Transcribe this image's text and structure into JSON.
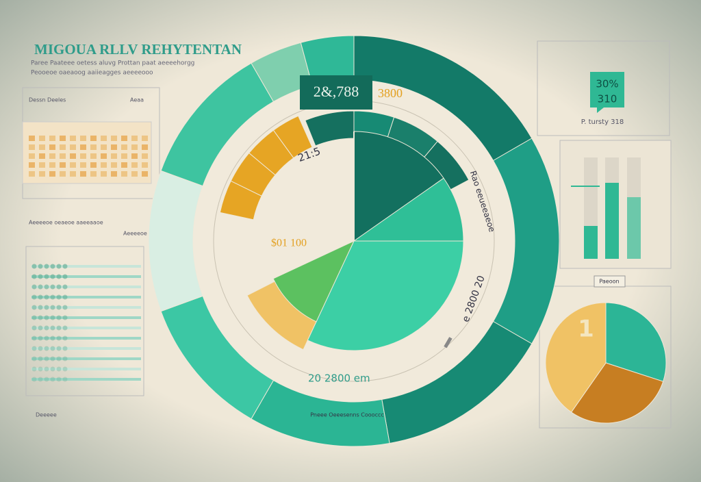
{
  "header": {
    "title": "MIGOUA RLLV REHYTENTAN",
    "subtitle": [
      "Paree Paateee oetess aluvg Prottan paat aeeeehorgg",
      "Peooeoe oaeaoog aaiieagges aeeeeooo"
    ]
  },
  "left_panel": {
    "table_header": "Dessn Deeles",
    "table_note": "Aeaa",
    "list_header": "Aeeeeoe oeaeoe aaeeaaoe",
    "list_note": "Aeeeeoe",
    "footer": "Deeeee"
  },
  "donut": {
    "top_label": "2&,788",
    "top_right": "3800",
    "inner_label": "21:5",
    "center_label": "$01 100",
    "bottom_label": "20 2800 em",
    "side_label": "Rao eeueeaeoe",
    "right_label": "e 2800 20",
    "footer": "Pneee Oeeesenns Coooccc"
  },
  "badge": {
    "value": "30%",
    "sub": "310",
    "caption": "P. tursty 318"
  },
  "small_pie": {
    "label": "Paeoon",
    "value": "1"
  }
}
